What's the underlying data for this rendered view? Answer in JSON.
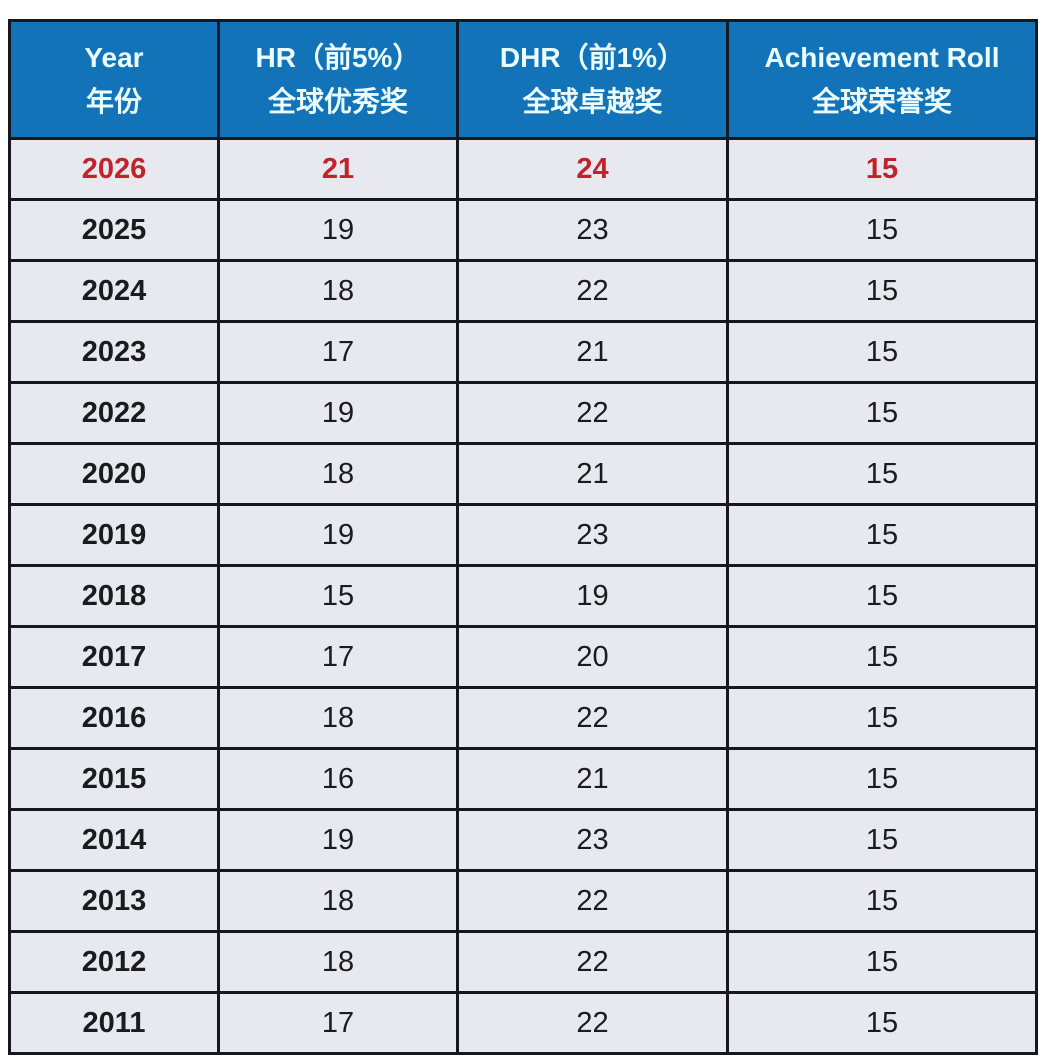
{
  "colors": {
    "header_bg": "#1273b8",
    "header_text": "#eafcff",
    "row_bg": "#e8e8f1",
    "border": "#15181f",
    "body_text": "#1b1b1d",
    "highlight_text": "#c02429",
    "page_bg": "#ffffff"
  },
  "table": {
    "columns": [
      {
        "en": "Year",
        "zh": "年份"
      },
      {
        "en": "HR（前5%）",
        "zh": "全球优秀奖"
      },
      {
        "en": "DHR（前1%）",
        "zh": "全球卓越奖"
      },
      {
        "en": "Achievement Roll",
        "zh": "全球荣誉奖"
      }
    ],
    "rows": [
      {
        "year": "2026",
        "hr": "21",
        "dhr": "24",
        "ar": "15",
        "highlight": true
      },
      {
        "year": "2025",
        "hr": "19",
        "dhr": "23",
        "ar": "15",
        "highlight": false
      },
      {
        "year": "2024",
        "hr": "18",
        "dhr": "22",
        "ar": "15",
        "highlight": false
      },
      {
        "year": "2023",
        "hr": "17",
        "dhr": "21",
        "ar": "15",
        "highlight": false
      },
      {
        "year": "2022",
        "hr": "19",
        "dhr": "22",
        "ar": "15",
        "highlight": false
      },
      {
        "year": "2020",
        "hr": "18",
        "dhr": "21",
        "ar": "15",
        "highlight": false
      },
      {
        "year": "2019",
        "hr": "19",
        "dhr": "23",
        "ar": "15",
        "highlight": false
      },
      {
        "year": "2018",
        "hr": "15",
        "dhr": "19",
        "ar": "15",
        "highlight": false
      },
      {
        "year": "2017",
        "hr": "17",
        "dhr": "20",
        "ar": "15",
        "highlight": false
      },
      {
        "year": "2016",
        "hr": "18",
        "dhr": "22",
        "ar": "15",
        "highlight": false
      },
      {
        "year": "2015",
        "hr": "16",
        "dhr": "21",
        "ar": "15",
        "highlight": false
      },
      {
        "year": "2014",
        "hr": "19",
        "dhr": "23",
        "ar": "15",
        "highlight": false
      },
      {
        "year": "2013",
        "hr": "18",
        "dhr": "22",
        "ar": "15",
        "highlight": false
      },
      {
        "year": "2012",
        "hr": "18",
        "dhr": "22",
        "ar": "15",
        "highlight": false
      },
      {
        "year": "2011",
        "hr": "17",
        "dhr": "22",
        "ar": "15",
        "highlight": false
      }
    ]
  },
  "chart_data": {
    "type": "table",
    "title": "",
    "columns": [
      "Year 年份",
      "HR（前5%）全球优秀奖",
      "DHR（前1%）全球卓越奖",
      "Achievement Roll 全球荣誉奖"
    ],
    "rows": [
      [
        "2026",
        21,
        24,
        15
      ],
      [
        "2025",
        19,
        23,
        15
      ],
      [
        "2024",
        18,
        22,
        15
      ],
      [
        "2023",
        17,
        21,
        15
      ],
      [
        "2022",
        19,
        22,
        15
      ],
      [
        "2020",
        18,
        21,
        15
      ],
      [
        "2019",
        19,
        23,
        15
      ],
      [
        "2018",
        15,
        19,
        15
      ],
      [
        "2017",
        17,
        20,
        15
      ],
      [
        "2016",
        18,
        22,
        15
      ],
      [
        "2015",
        16,
        21,
        15
      ],
      [
        "2014",
        19,
        23,
        15
      ],
      [
        "2013",
        18,
        22,
        15
      ],
      [
        "2012",
        18,
        22,
        15
      ],
      [
        "2011",
        17,
        22,
        15
      ]
    ],
    "notes": "First data row (2026) is highlighted in red bold; header row has blue background with bilingual labels; year 2021 is absent."
  }
}
